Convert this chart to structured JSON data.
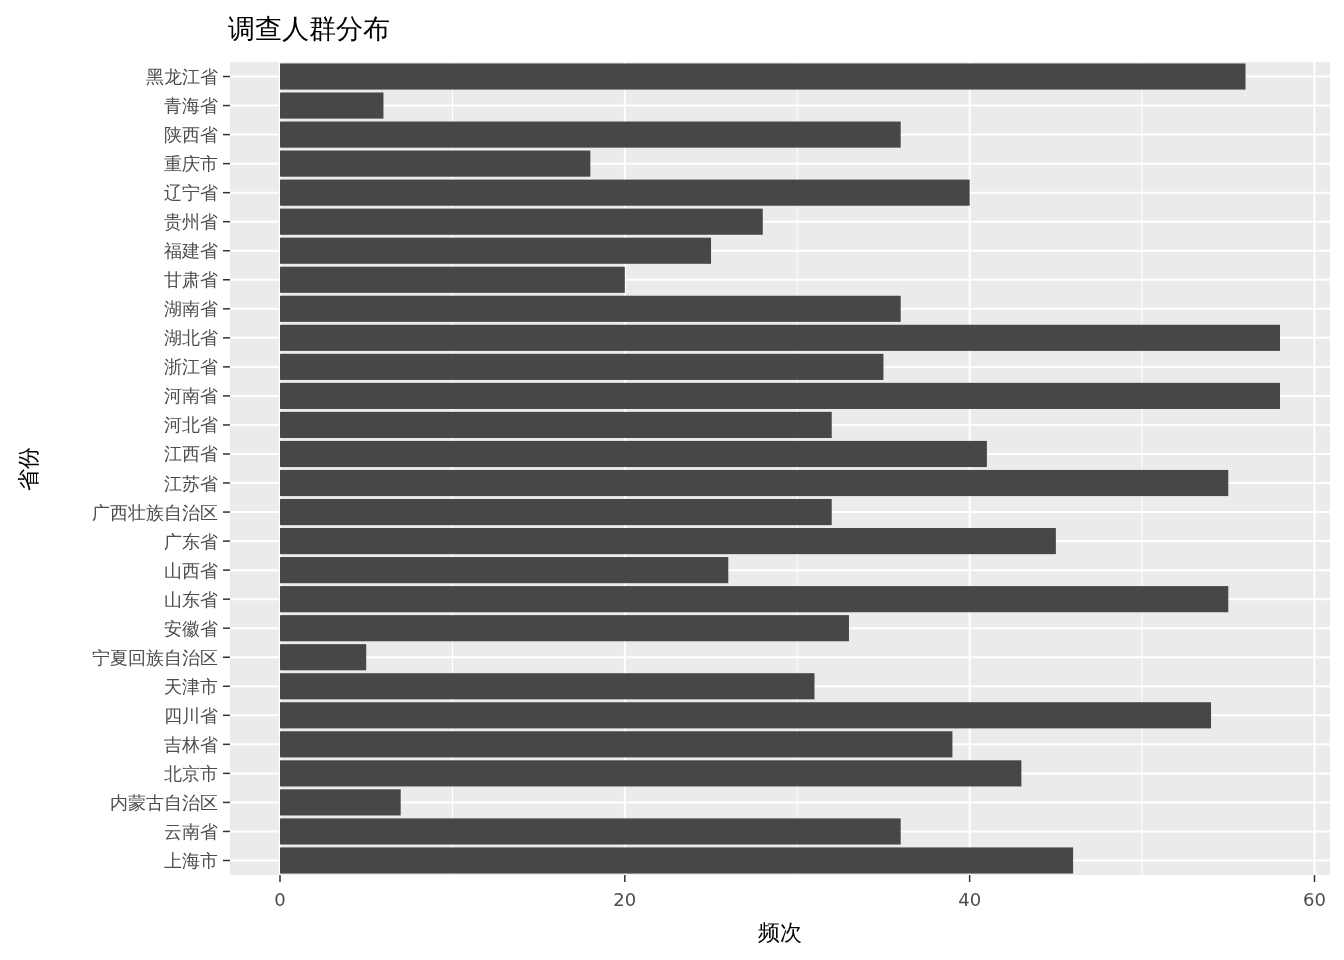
{
  "chart_data": {
    "type": "bar",
    "orientation": "horizontal",
    "title": "调查人群分布",
    "xlabel": "频次",
    "ylabel": "省份",
    "categories": [
      "黑龙江省",
      "青海省",
      "陕西省",
      "重庆市",
      "辽宁省",
      "贵州省",
      "福建省",
      "甘肃省",
      "湖南省",
      "湖北省",
      "浙江省",
      "河南省",
      "河北省",
      "江西省",
      "江苏省",
      "广西壮族自治区",
      "广东省",
      "山西省",
      "山东省",
      "安徽省",
      "宁夏回族自治区",
      "天津市",
      "四川省",
      "吉林省",
      "北京市",
      "内蒙古自治区",
      "云南省",
      "上海市"
    ],
    "values": [
      56,
      6,
      36,
      18,
      40,
      28,
      25,
      20,
      36,
      58,
      35,
      58,
      32,
      41,
      55,
      32,
      45,
      26,
      55,
      33,
      5,
      31,
      54,
      39,
      43,
      7,
      36,
      46
    ],
    "color": "#474747",
    "xlim": [
      -2.9,
      60.9
    ],
    "xticks": [
      0,
      20,
      40,
      60
    ],
    "grid": true
  }
}
